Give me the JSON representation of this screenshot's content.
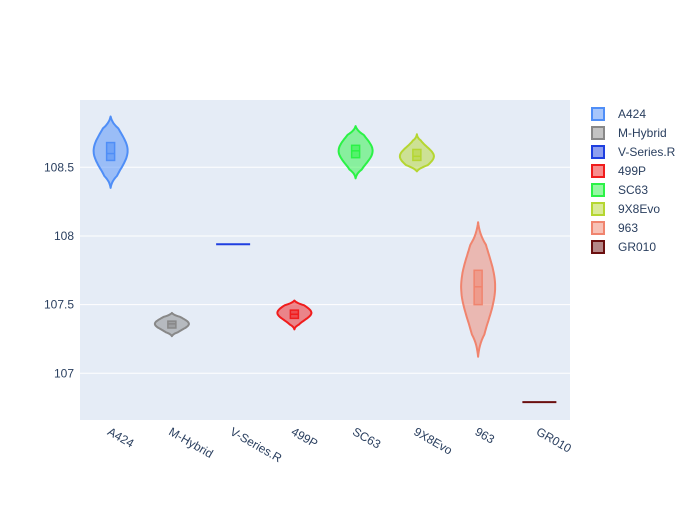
{
  "chart_data": {
    "type": "violin",
    "title": "",
    "xlabel": "",
    "ylabel": "",
    "ylim": [
      106.66,
      108.99
    ],
    "y_ticks": [
      107,
      107.5,
      108,
      108.5
    ],
    "y_tick_labels": [
      "107",
      "107.5",
      "108",
      "108.5"
    ],
    "categories": [
      "A424",
      "M-Hybrid",
      "V-Series.R",
      "499P",
      "SC63",
      "9X8Evo",
      "963",
      "GR010"
    ],
    "grid": true,
    "legend_position": "right",
    "series": [
      {
        "name": "A424",
        "color": "#4f8ef7",
        "min": 108.35,
        "max": 108.87,
        "q1": 108.55,
        "median": 108.6,
        "q3": 108.68,
        "peak": 108.62
      },
      {
        "name": "M-Hybrid",
        "color": "#888888",
        "min": 107.27,
        "max": 107.44,
        "q1": 107.33,
        "median": 107.36,
        "q3": 107.38,
        "peak": 107.36
      },
      {
        "name": "V-Series.R",
        "color": "#1f3fe0",
        "min": 107.94,
        "max": 107.94,
        "q1": 107.94,
        "median": 107.94,
        "q3": 107.94,
        "peak": 107.94
      },
      {
        "name": "499P",
        "color": "#f01c1c",
        "min": 107.32,
        "max": 107.53,
        "q1": 107.4,
        "median": 107.43,
        "q3": 107.46,
        "peak": 107.44
      },
      {
        "name": "SC63",
        "color": "#2bf246",
        "min": 108.42,
        "max": 108.8,
        "q1": 108.57,
        "median": 108.62,
        "q3": 108.66,
        "peak": 108.62
      },
      {
        "name": "9X8Evo",
        "color": "#b5d631",
        "min": 108.47,
        "max": 108.74,
        "q1": 108.55,
        "median": 108.58,
        "q3": 108.63,
        "peak": 108.58
      },
      {
        "name": "963",
        "color": "#f0846e",
        "min": 107.12,
        "max": 108.1,
        "q1": 107.5,
        "median": 107.63,
        "q3": 107.75,
        "peak": 107.63
      },
      {
        "name": "GR010",
        "color": "#6b0f0f",
        "min": 106.79,
        "max": 106.79,
        "q1": 106.79,
        "median": 106.79,
        "q3": 106.79,
        "peak": 106.79
      }
    ]
  }
}
